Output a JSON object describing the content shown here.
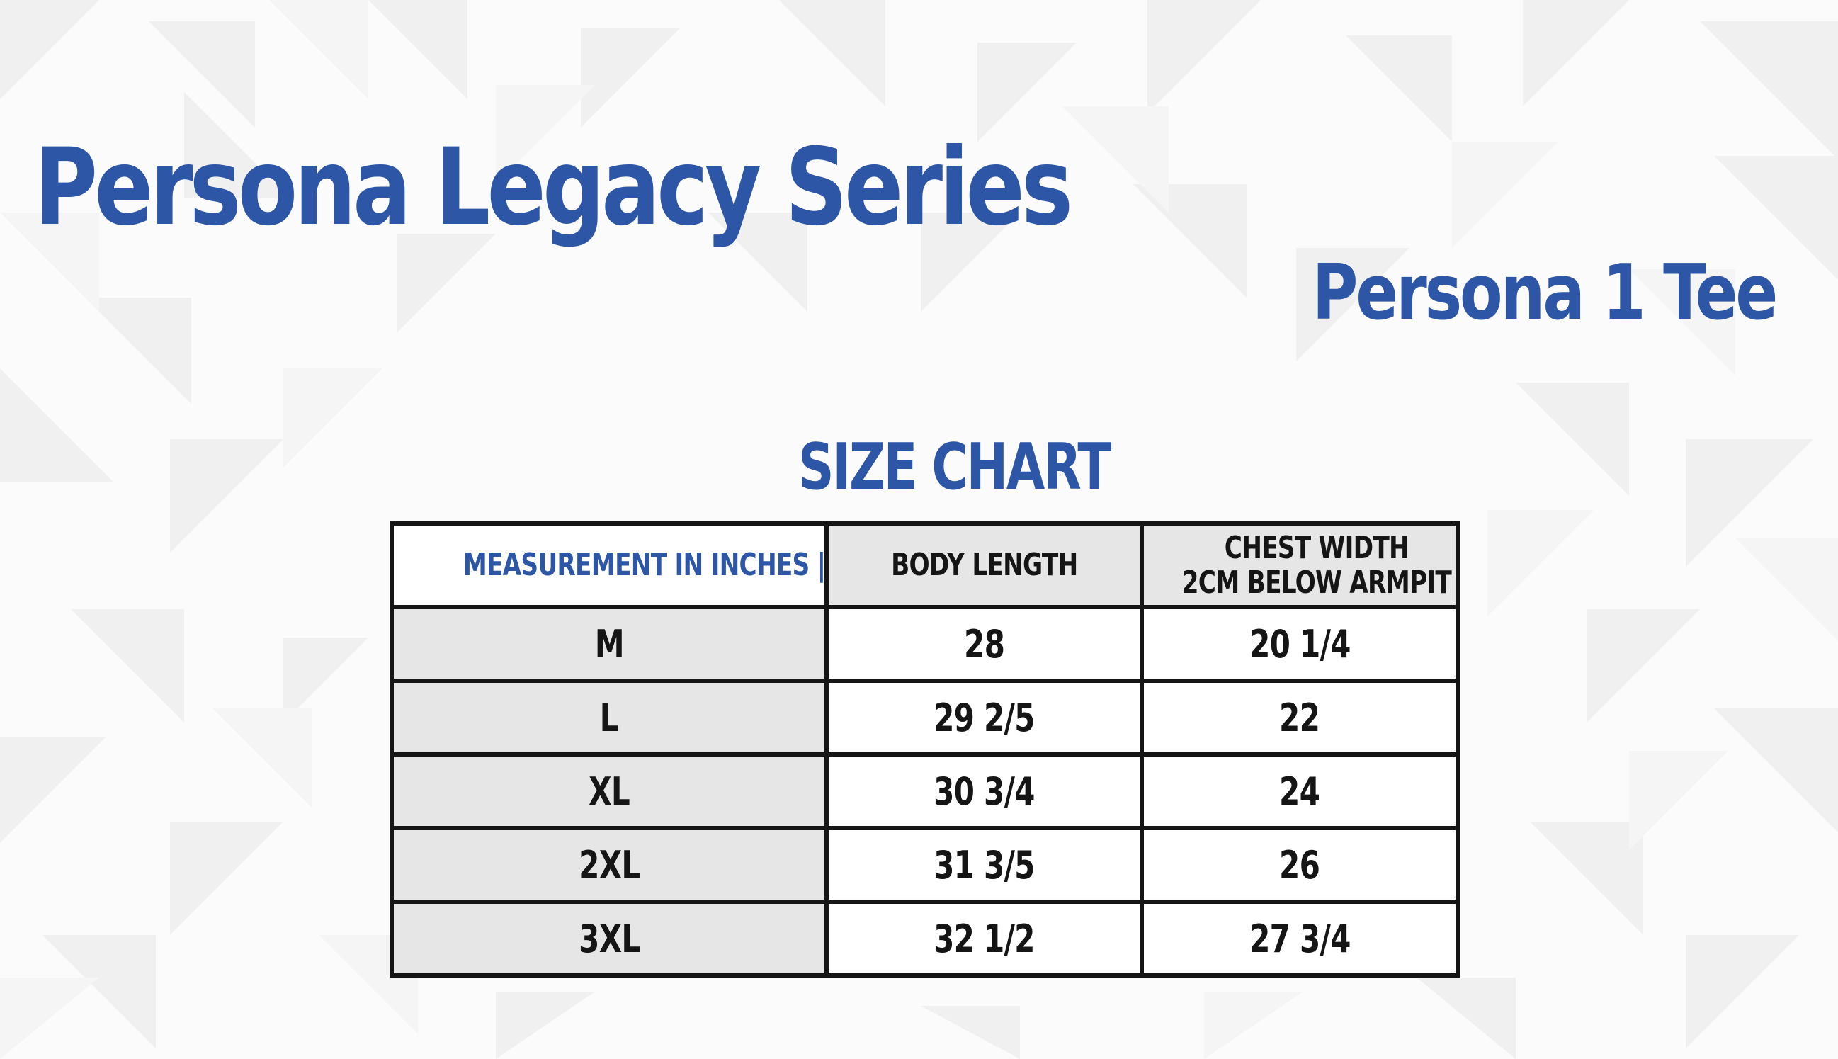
{
  "header": {
    "title": "Persona Legacy Series",
    "subtitle": "Persona 1 Tee"
  },
  "chart": {
    "title": "SIZE CHART",
    "columns": [
      {
        "line1": "MEASUREMENT IN INCHES | US SIZES",
        "line2": ""
      },
      {
        "line1": "BODY LENGTH",
        "line2": ""
      },
      {
        "line1": "CHEST WIDTH",
        "line2": "2CM BELOW ARMPIT"
      }
    ],
    "rows": [
      {
        "size": "M",
        "body_length": "28",
        "chest_width": "20 1/4"
      },
      {
        "size": "L",
        "body_length": "29 2/5",
        "chest_width": "22"
      },
      {
        "size": "XL",
        "body_length": "30 3/4",
        "chest_width": "24"
      },
      {
        "size": "2XL",
        "body_length": "31 3/5",
        "chest_width": "26"
      },
      {
        "size": "3XL",
        "body_length": "32 1/2",
        "chest_width": "27 3/4"
      }
    ]
  },
  "colors": {
    "title_blue": "#2d56a6",
    "border": "#151515",
    "cell_gray": "#e6e6e6",
    "background": "#fbfbfb"
  }
}
